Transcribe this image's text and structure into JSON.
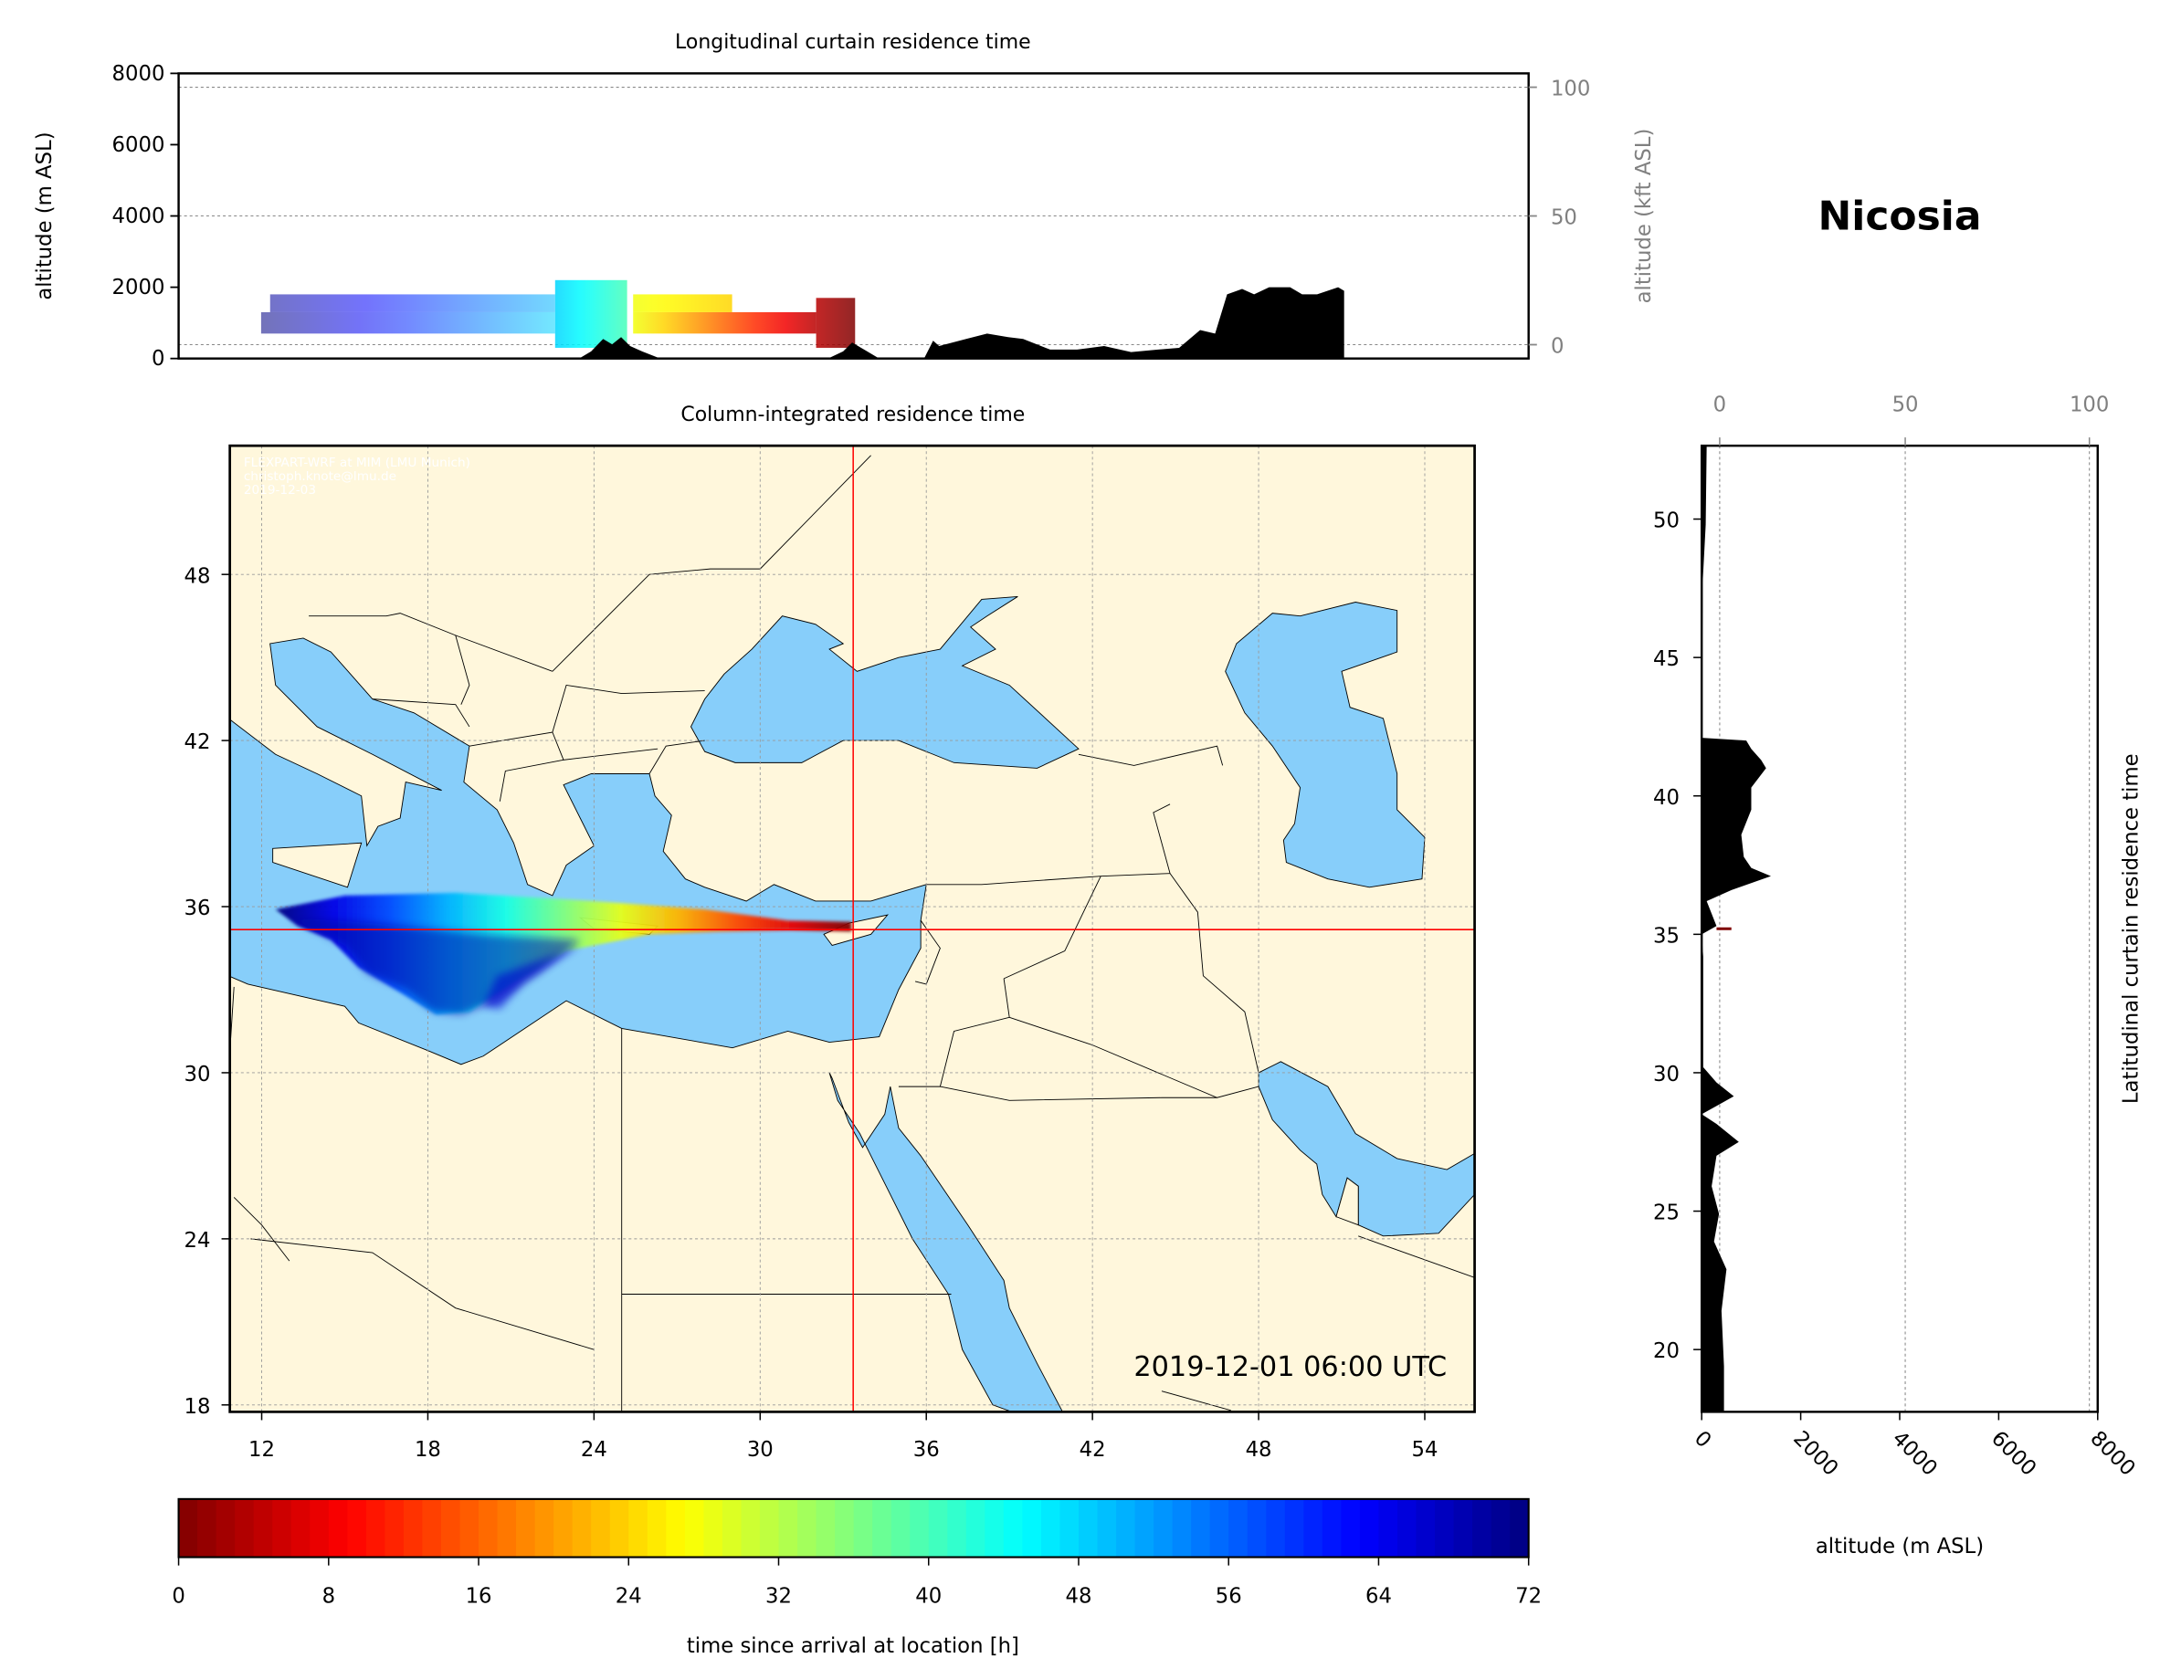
{
  "station": "Nicosia",
  "chart_data": [
    {
      "type": "area",
      "title": "Longitudinal curtain residence time",
      "ylabel": "altitude (m ASL)",
      "ylabel_right": "altitude (kft ASL)",
      "ylim": [
        0,
        8000
      ],
      "xlim": [
        10.85,
        55.85
      ],
      "yticks": [
        "0",
        "2000",
        "4000",
        "6000",
        "8000"
      ],
      "yticks_right": [
        "0",
        "50",
        "100"
      ],
      "grid": true,
      "terrain_profile": {
        "lon": [
          24.2,
          24.6,
          25.0,
          25.3,
          25.6,
          25.9,
          26.3,
          26.9,
          32.5,
          33.0,
          33.3,
          33.7,
          34.2,
          35.7,
          36.0,
          36.2,
          37.1,
          37.8,
          38.5,
          39.0,
          39.9,
          40.8,
          41.7,
          42.6,
          43.5,
          44.2,
          44.9,
          45.4,
          45.8,
          46.3,
          46.7,
          47.2,
          47.9,
          48.3,
          48.8,
          49.5,
          49.7
        ],
        "alt": [
          0,
          200,
          550,
          400,
          600,
          350,
          200,
          0,
          0,
          200,
          450,
          250,
          0,
          0,
          500,
          350,
          550,
          700,
          600,
          550,
          250,
          250,
          350,
          180,
          250,
          300,
          800,
          700,
          1800,
          1950,
          1800,
          2000,
          2000,
          1800,
          1800,
          2000,
          1900
        ]
      },
      "plume_layers": [
        {
          "lon": [
            13.6,
            23.4
          ],
          "alt": [
            700,
            1300
          ],
          "hours": [
            72,
            48
          ]
        },
        {
          "lon": [
            13.9,
            23.4
          ],
          "alt": [
            1300,
            1800
          ],
          "hours": [
            70,
            50
          ]
        },
        {
          "lon": [
            23.4,
            25.8
          ],
          "alt": [
            300,
            2200
          ],
          "hours": [
            48,
            40
          ]
        },
        {
          "lon": [
            26.0,
            32.1
          ],
          "alt": [
            700,
            1300
          ],
          "hours": [
            28,
            4
          ]
        },
        {
          "lon": [
            26.0,
            29.3
          ],
          "alt": [
            1300,
            1800
          ],
          "hours": [
            28,
            24
          ]
        },
        {
          "lon": [
            32.1,
            33.4
          ],
          "alt": [
            300,
            1700
          ],
          "hours": [
            4,
            0
          ]
        }
      ]
    },
    {
      "type": "heatmap",
      "title": "Column-integrated residence time",
      "xlim": [
        10.85,
        55.8
      ],
      "ylim": [
        17.75,
        52.65
      ],
      "xticks": [
        "12",
        "18",
        "24",
        "30",
        "36",
        "42",
        "48",
        "54"
      ],
      "yticks": [
        "18",
        "24",
        "30",
        "36",
        "42",
        "48"
      ],
      "grid": true,
      "receptor": {
        "lon": 33.36,
        "lat": 35.17
      },
      "timestamp": "2019-12-01 06:00 UTC",
      "watermark": [
        "FLEXPART-WRF at MIM (LMU Munich)",
        "christoph.knote@lmu.de",
        "2019-12-03"
      ],
      "colors": {
        "land": "#fff7dc",
        "sea": "#87cefa",
        "crosshair": "#ff0000"
      }
    },
    {
      "type": "area",
      "title": "Latitudinal curtain residence time",
      "xlabel": "altitude (m ASL)",
      "xlim": [
        0,
        8000
      ],
      "ylim": [
        17.75,
        52.65
      ],
      "xticks": [
        "0",
        "2000",
        "4000",
        "6000",
        "8000"
      ],
      "xticks_top": [
        "0",
        "50",
        "100"
      ],
      "yticks": [
        "20",
        "25",
        "30",
        "35",
        "40",
        "45",
        "50"
      ],
      "grid": true,
      "terrain_profile": {
        "lat": [
          52.65,
          49.8,
          47.7,
          46.8,
          42.1,
          42.0,
          41.7,
          41.3,
          41.0,
          40.3,
          39.5,
          38.6,
          37.8,
          37.4,
          37.1,
          36.6,
          36.2,
          35.3,
          35.0,
          34.2,
          30.2,
          29.65,
          29.15,
          28.8,
          28.5,
          28.15,
          27.5,
          27.0,
          25.9,
          24.9,
          23.9,
          22.9,
          21.4,
          19.4,
          17.75
        ],
        "alt": [
          100,
          80,
          20,
          20,
          0,
          900,
          1000,
          1200,
          1300,
          1000,
          1000,
          800,
          850,
          1000,
          1400,
          600,
          100,
          300,
          0,
          30,
          30,
          300,
          650,
          300,
          0,
          300,
          750,
          300,
          200,
          350,
          250,
          500,
          400,
          450,
          450
        ]
      },
      "plume_marker": {
        "lat": 35.2,
        "alt": [
          300,
          600
        ],
        "hours": 0
      }
    },
    {
      "type": "colorbar",
      "label": "time since arrival at location [h]",
      "range": [
        0,
        72
      ],
      "ticks": [
        "0",
        "8",
        "16",
        "24",
        "32",
        "40",
        "48",
        "56",
        "64",
        "72"
      ],
      "colormap": "jet_r"
    }
  ]
}
